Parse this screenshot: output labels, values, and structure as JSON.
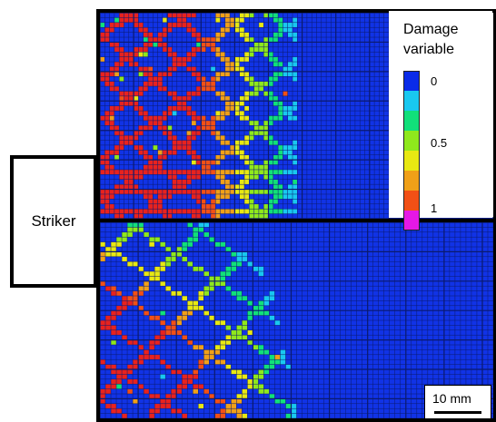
{
  "figure": {
    "striker_label": "Striker",
    "legend": {
      "title": "Damage variable",
      "title_line1": "Damage",
      "title_line2": "variable",
      "tick_labels": [
        "0",
        "0.5",
        "1"
      ],
      "colormap": [
        "#0a2be8",
        "#19c8f0",
        "#11e07a",
        "#8fe81c",
        "#e8e812",
        "#f0a018",
        "#f25016",
        "#e618e6"
      ]
    },
    "scale_bar": {
      "label": "10 mm"
    },
    "colors": {
      "undamaged": "#1133e6",
      "fully_damaged": "#e8221e",
      "grid_line": "#0b1a6e",
      "frame": "#000000"
    }
  }
}
